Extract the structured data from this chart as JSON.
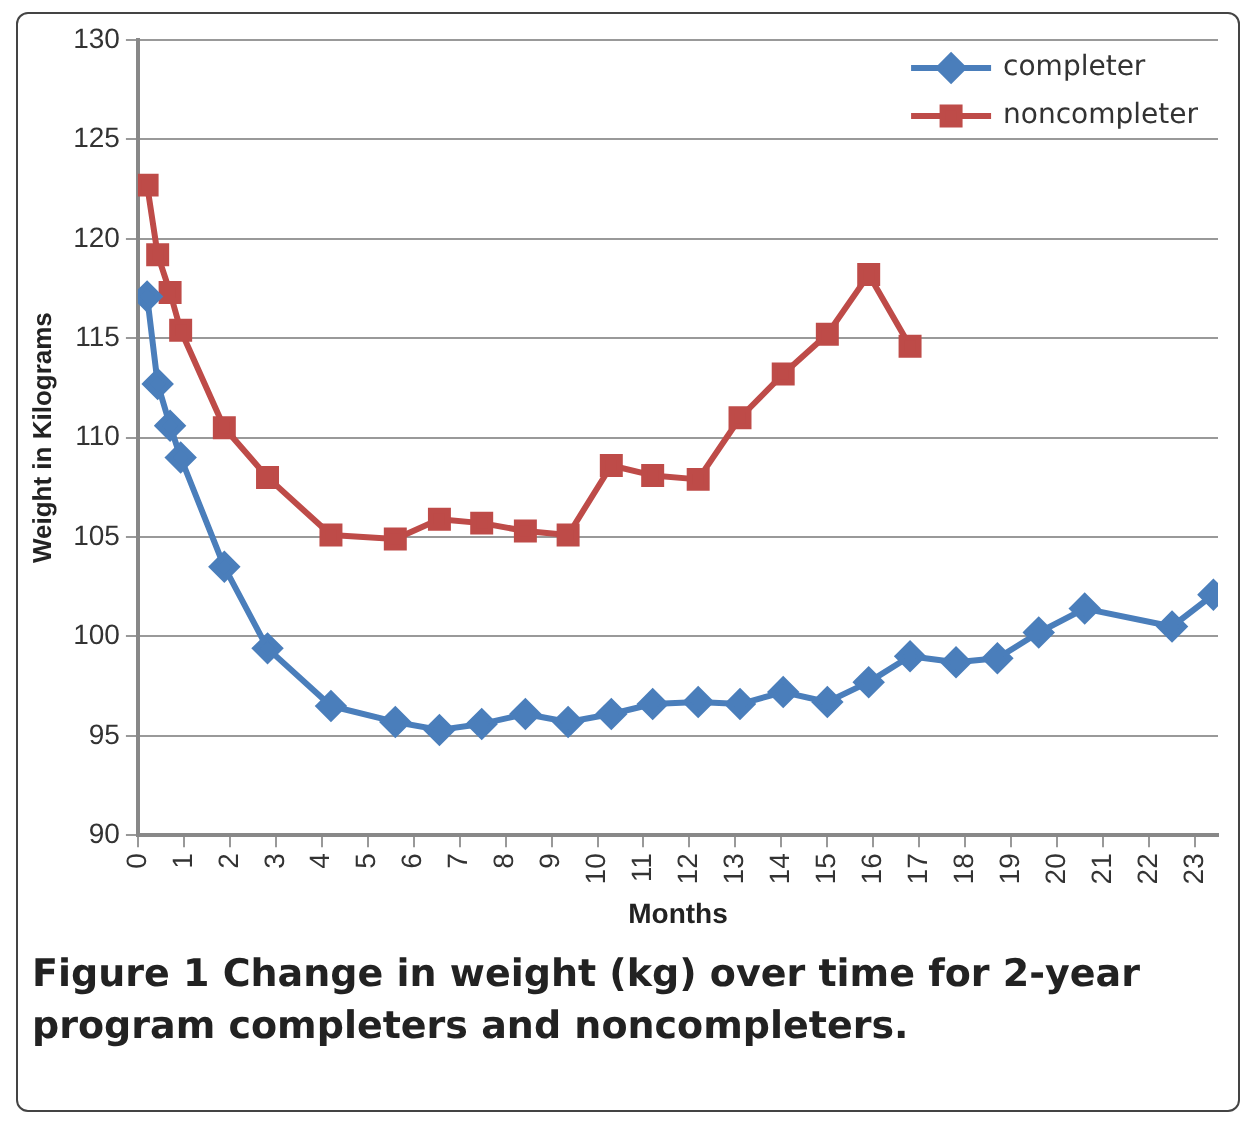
{
  "chart_data": {
    "type": "line",
    "xlabel": "Months",
    "ylabel": "Weight in Kilograms",
    "annotations": [
      "Figure 1 Change in weight (kg) over time for 2-year program completers and noncompleters."
    ],
    "x": [
      0.2,
      0.43,
      0.7,
      0.93,
      1.88,
      2.82,
      4.2,
      5.6,
      6.56,
      7.48,
      8.43,
      9.36,
      10.3,
      11.2,
      12.19,
      13.1,
      14.04,
      15.0,
      15.9,
      16.8,
      17.8,
      18.7,
      19.6,
      20.6,
      22.5,
      23.4
    ],
    "series": [
      {
        "name": "completer",
        "color": "#4a7ebb",
        "marker": "diamond",
        "values": [
          117.1,
          112.7,
          110.6,
          109.0,
          103.5,
          99.4,
          96.5,
          95.7,
          95.3,
          95.6,
          96.1,
          95.7,
          96.1,
          96.6,
          96.7,
          96.6,
          97.2,
          96.7,
          97.7,
          99.0,
          98.7,
          98.9,
          100.2,
          101.4,
          100.5,
          102.1
        ]
      },
      {
        "name": "noncompleter",
        "color": "#be4b48",
        "marker": "square",
        "values": [
          122.7,
          119.2,
          117.3,
          115.4,
          110.5,
          108.0,
          105.1,
          104.9,
          105.9,
          105.7,
          105.3,
          105.1,
          108.6,
          108.1,
          107.9,
          111.0,
          113.2,
          115.2,
          118.2,
          114.6,
          null,
          null,
          null,
          null,
          null,
          null
        ]
      }
    ],
    "xlim": [
      0,
      23.5
    ],
    "xticks": [
      0,
      1,
      2,
      3,
      4,
      5,
      6,
      7,
      8,
      9,
      10,
      11,
      12,
      13,
      14,
      15,
      16,
      17,
      18,
      19,
      20,
      21,
      22,
      23
    ],
    "ylim": [
      90,
      130
    ],
    "yticks": [
      90,
      95,
      100,
      105,
      110,
      115,
      120,
      125,
      130
    ],
    "grid": "y",
    "legend": "top right",
    "line_style": "solid"
  }
}
